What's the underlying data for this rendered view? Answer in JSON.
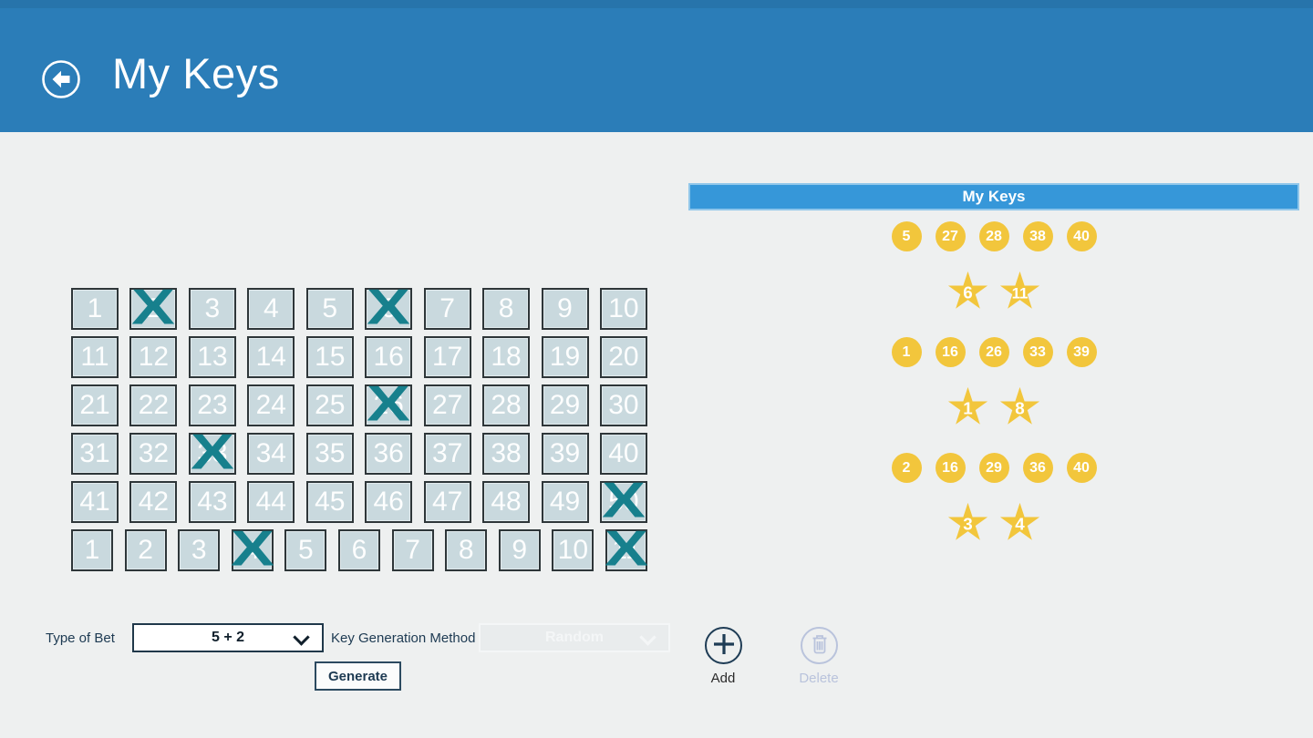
{
  "header": {
    "title": "My Keys"
  },
  "board": {
    "number_cells": [
      1,
      2,
      3,
      4,
      5,
      6,
      7,
      8,
      9,
      10,
      11,
      12,
      13,
      14,
      15,
      16,
      17,
      18,
      19,
      20,
      21,
      22,
      23,
      24,
      25,
      26,
      27,
      28,
      29,
      30,
      31,
      32,
      33,
      34,
      35,
      36,
      37,
      38,
      39,
      40,
      41,
      42,
      43,
      44,
      45,
      46,
      47,
      48,
      49,
      50
    ],
    "crossed_numbers": [
      2,
      6,
      26,
      33,
      50
    ],
    "star_cells": [
      1,
      2,
      3,
      4,
      5,
      6,
      7,
      8,
      9,
      10,
      11
    ],
    "crossed_stars": [
      4,
      11
    ],
    "cross_glyph": "X"
  },
  "controls": {
    "type_of_bet_label": "Type of Bet",
    "type_of_bet_value": "5 + 2",
    "key_generation_method_label": "Key Generation Method",
    "key_generation_method_value": "Random",
    "generate_label": "Generate",
    "add_label": "Add",
    "delete_label": "Delete"
  },
  "keys_panel": {
    "title": "My Keys",
    "keys": [
      {
        "numbers": [
          5,
          27,
          28,
          38,
          40
        ],
        "stars": [
          6,
          11
        ]
      },
      {
        "numbers": [
          1,
          16,
          26,
          33,
          39
        ],
        "stars": [
          1,
          8
        ]
      },
      {
        "numbers": [
          2,
          16,
          29,
          36,
          40
        ],
        "stars": [
          3,
          4
        ]
      }
    ]
  },
  "colors": {
    "header-blue": "#2b7db8",
    "panel-blue": "#3697d9",
    "page-bg": "#eef0f0",
    "cell-bg": "#c9d9de",
    "cell-border": "#2e3639",
    "cross-teal": "#17808d",
    "gold": "#f2c63c",
    "navy": "#1e3c55",
    "text-dark": "#1d3a52",
    "disabled": "#b9c3dc",
    "disabled-bg": "#e9eced",
    "disabled-border": "#f4f6f7"
  }
}
